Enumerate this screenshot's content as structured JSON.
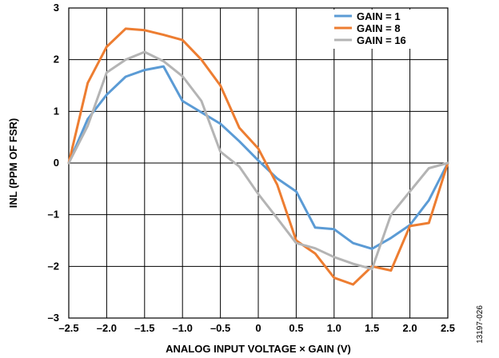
{
  "chart_data": {
    "type": "line",
    "xlabel": "ANALOG INPUT VOLTAGE × GAIN (V)",
    "ylabel": "INL (PPM OF FSR)",
    "xlim": [
      -2.5,
      2.5
    ],
    "ylim": [
      -3,
      3
    ],
    "x_ticks": [
      -2.5,
      -2.0,
      -1.5,
      -1.0,
      -0.5,
      0,
      0.5,
      1.0,
      1.5,
      2.0,
      2.5
    ],
    "x_tick_labels": [
      "–2.5",
      "–2.0",
      "–1.5",
      "–1.0",
      "–0.5",
      "0",
      "0.5",
      "1.0",
      "1.5",
      "2.0",
      "2.5"
    ],
    "y_ticks": [
      -3,
      -2,
      -1,
      0,
      1,
      2,
      3
    ],
    "y_tick_labels": [
      "–3",
      "–2",
      "–1",
      "0",
      "1",
      "2",
      "3"
    ],
    "grid": true,
    "legend_position": "top-right",
    "figure_id": "13197-026",
    "series": [
      {
        "name": "GAIN = 1",
        "color": "#5B9BD5",
        "x": [
          -2.5,
          -2.25,
          -2.0,
          -1.75,
          -1.5,
          -1.25,
          -1.0,
          -0.75,
          -0.5,
          -0.25,
          0.0,
          0.25,
          0.5,
          0.75,
          1.0,
          1.25,
          1.5,
          1.75,
          2.0,
          2.25,
          2.5
        ],
        "y": [
          0,
          0.85,
          1.32,
          1.67,
          1.8,
          1.87,
          1.2,
          0.98,
          0.76,
          0.42,
          0.05,
          -0.3,
          -0.55,
          -1.25,
          -1.28,
          -1.55,
          -1.66,
          -1.45,
          -1.2,
          -0.72,
          0
        ]
      },
      {
        "name": "GAIN = 8",
        "color": "#ED7D31",
        "x": [
          -2.5,
          -2.25,
          -2.0,
          -1.75,
          -1.5,
          -1.25,
          -1.0,
          -0.75,
          -0.5,
          -0.25,
          0.0,
          0.25,
          0.5,
          0.75,
          1.0,
          1.25,
          1.5,
          1.75,
          2.0,
          2.25,
          2.5
        ],
        "y": [
          0,
          1.55,
          2.25,
          2.6,
          2.57,
          2.48,
          2.38,
          2.0,
          1.5,
          0.68,
          0.28,
          -0.42,
          -1.5,
          -1.75,
          -2.22,
          -2.35,
          -2.0,
          -2.08,
          -1.22,
          -1.16,
          0
        ]
      },
      {
        "name": "GAIN = 16",
        "color": "#B4B4B4",
        "x": [
          -2.5,
          -2.25,
          -2.0,
          -1.75,
          -1.5,
          -1.25,
          -1.0,
          -0.75,
          -0.5,
          -0.25,
          0.0,
          0.25,
          0.5,
          0.75,
          1.0,
          1.25,
          1.5,
          1.75,
          2.0,
          2.25,
          2.5
        ],
        "y": [
          0,
          0.72,
          1.75,
          2.0,
          2.15,
          1.97,
          1.68,
          1.2,
          0.22,
          -0.07,
          -0.6,
          -1.07,
          -1.55,
          -1.65,
          -1.82,
          -1.95,
          -2.05,
          -1.0,
          -0.55,
          -0.1,
          0
        ]
      }
    ]
  }
}
